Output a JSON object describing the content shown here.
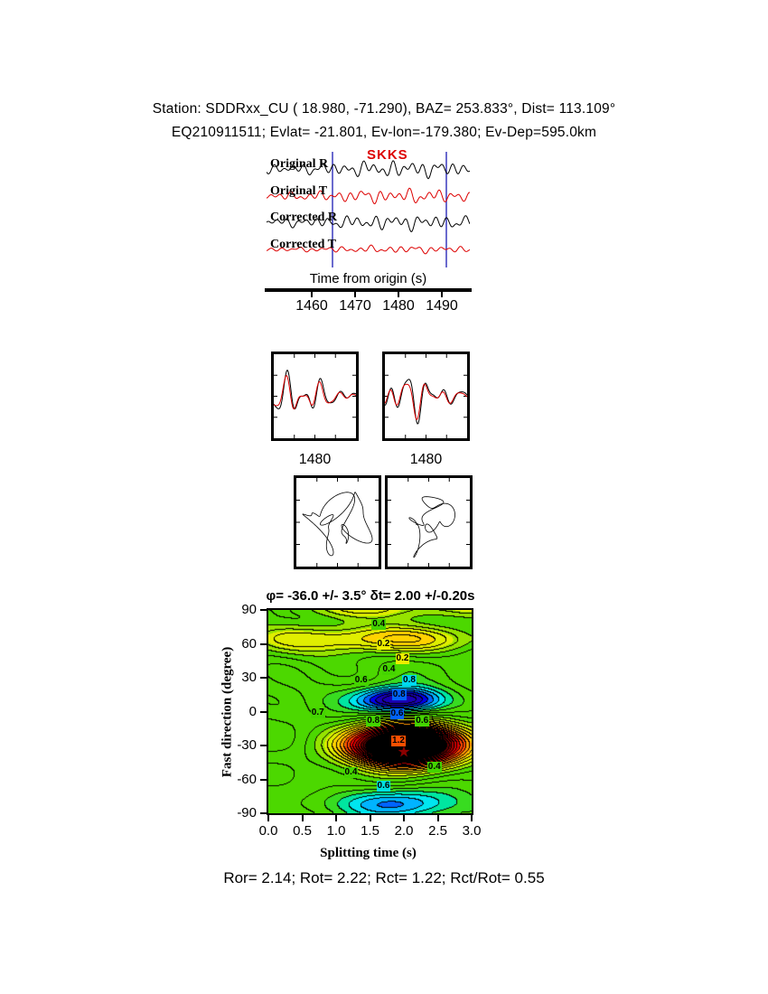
{
  "header": {
    "line1": "Station: SDDRxx_CU (  18.980,  -71.290), BAZ=  253.833°, Dist=  113.109°",
    "line2": "EQ210911511; Evlat= -21.801, Ev-lon=-179.380; Ev-Dep=595.0km"
  },
  "waveforms": {
    "phase_label": "SKKS",
    "xlabel": "Time from origin (s)",
    "ticks": [
      "1460",
      "1470",
      "1480",
      "1490"
    ],
    "traces": [
      {
        "label": "Original R",
        "color": "#000000"
      },
      {
        "label": "Original T",
        "color": "#dd0000"
      },
      {
        "label": "Corrected R",
        "color": "#000000"
      },
      {
        "label": "Corrected T",
        "color": "#dd0000"
      }
    ]
  },
  "compare": {
    "left_tick": "1480",
    "right_tick": "1480"
  },
  "contour": {
    "title": "φ= -36.0 +/- 3.5°  δt= 2.00 +/-0.20s",
    "xlabel": "Splitting time (s)",
    "ylabel": "Fast direction (degree)",
    "xticks": [
      "0.0",
      "0.5",
      "1.0",
      "1.5",
      "2.0",
      "2.5",
      "3.0"
    ],
    "yticks": [
      "90",
      "60",
      "30",
      "0",
      "-30",
      "-60",
      "-90"
    ],
    "star": {
      "dt": 2.0,
      "phi": -36.0
    },
    "labels": [
      {
        "text": "0.4",
        "dt": 1.63,
        "phi": 77,
        "bg": "#44d400"
      },
      {
        "text": "0.2",
        "dt": 1.7,
        "phi": 60,
        "bg": "#eeee00"
      },
      {
        "text": "0.2",
        "dt": 1.98,
        "phi": 47,
        "bg": "#eeee00"
      },
      {
        "text": "0.4",
        "dt": 1.78,
        "phi": 37,
        "bg": "#44d400"
      },
      {
        "text": "0.6",
        "dt": 1.37,
        "phi": 28,
        "bg": "#44d400"
      },
      {
        "text": "0.8",
        "dt": 2.08,
        "phi": 28,
        "bg": "#00d8f0"
      },
      {
        "text": "0.8",
        "dt": 1.93,
        "phi": 15,
        "bg": "#0064ff"
      },
      {
        "text": "0.7",
        "dt": 0.73,
        "phi": -1,
        "bg": "#44d400"
      },
      {
        "text": "0.6",
        "dt": 1.9,
        "phi": -2,
        "bg": "#0064ff"
      },
      {
        "text": "0.8",
        "dt": 1.55,
        "phi": -8,
        "bg": "#44d400"
      },
      {
        "text": "0.6",
        "dt": 2.27,
        "phi": -8,
        "bg": "#44d400"
      },
      {
        "text": "1.2",
        "dt": 1.92,
        "phi": -26,
        "bg": "#ff5000"
      },
      {
        "text": "0.4",
        "dt": 1.22,
        "phi": -54,
        "bg": "#44d400"
      },
      {
        "text": "0.4",
        "dt": 2.45,
        "phi": -49,
        "bg": "#44d400"
      },
      {
        "text": "0.6",
        "dt": 1.7,
        "phi": -66,
        "bg": "#00e0e0"
      }
    ]
  },
  "footer": "Ror= 2.14; Rot= 2.22; Rct= 1.22; Rct/Rot= 0.55",
  "results": {
    "Ror": 2.14,
    "Rot": 2.22,
    "Rct": 1.22,
    "Rct_Rot": 0.55
  },
  "chart_data": [
    {
      "type": "line",
      "title": "Seismogram traces around SKKS arrival",
      "xlabel": "Time from origin (s)",
      "x_ticks": [
        1460,
        1470,
        1480,
        1490
      ],
      "analysis_window_s": [
        1465,
        1491
      ],
      "phase": "SKKS",
      "series": [
        {
          "name": "Original R",
          "color": "#000000"
        },
        {
          "name": "Original T",
          "color": "#dd0000"
        },
        {
          "name": "Corrected R",
          "color": "#000000"
        },
        {
          "name": "Corrected T",
          "color": "#dd0000"
        }
      ]
    },
    {
      "type": "line",
      "title": "Fast/slow waveform comparison panels",
      "panels": [
        {
          "x_tick": 1480
        },
        {
          "x_tick": 1480
        }
      ],
      "series_per_panel": [
        "black component",
        "red component"
      ]
    },
    {
      "type": "scatter",
      "title": "Particle motion panels (original / corrected)",
      "panels": 2
    },
    {
      "type": "heatmap",
      "title": "Splitting parameter error surface",
      "xlabel": "Splitting time (s)",
      "ylabel": "Fast direction (degree)",
      "xlim": [
        0.0,
        3.0
      ],
      "ylim": [
        -90,
        90
      ],
      "x_ticks": [
        0.0,
        0.5,
        1.0,
        1.5,
        2.0,
        2.5,
        3.0
      ],
      "y_ticks": [
        90,
        60,
        30,
        0,
        -30,
        -60,
        -90
      ],
      "best_fit": {
        "phi_deg": -36.0,
        "phi_err_deg": 3.5,
        "dt_s": 2.0,
        "dt_err_s": 0.2
      },
      "labeled_contour_levels": [
        0.2,
        0.4,
        0.6,
        0.7,
        0.8,
        1.2
      ],
      "energy_low_region": {
        "dt_s": 1.95,
        "phi_deg": 10
      },
      "energy_high_region": {
        "dt_s": 2.0,
        "phi_deg": -30
      }
    }
  ]
}
